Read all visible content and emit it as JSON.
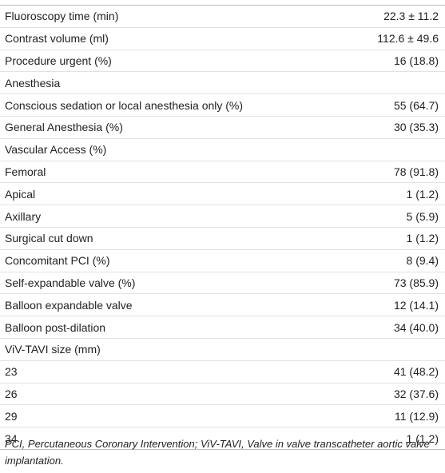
{
  "table": {
    "rows": [
      [
        "Fluoroscopy time (min)",
        "22.3 ± 11.2"
      ],
      [
        "Contrast volume (ml)",
        "112.6 ± 49.6"
      ],
      [
        "Procedure urgent (%)",
        "16 (18.8)"
      ],
      [
        "Anesthesia"
      ],
      [
        "Conscious sedation or local anesthesia only (%)",
        "55 (64.7)"
      ],
      [
        "General Anesthesia (%)",
        "30 (35.3)"
      ],
      [
        "Vascular Access (%)"
      ],
      [
        "Femoral",
        "78 (91.8)"
      ],
      [
        "Apical",
        "1 (1.2)"
      ],
      [
        "Axillary",
        "5 (5.9)"
      ],
      [
        "Surgical cut down",
        "1 (1.2)"
      ],
      [
        "Concomitant PCI (%)",
        "8 (9.4)"
      ],
      [
        "Self-expandable valve (%)",
        "73 (85.9)"
      ],
      [
        "Balloon expandable valve",
        "12 (14.1)"
      ],
      [
        "Balloon post-dilation",
        "34 (40.0)"
      ],
      [
        "ViV-TAVI size (mm)"
      ],
      [
        "23",
        "41 (48.2)"
      ],
      [
        "26",
        "32 (37.6)"
      ],
      [
        "29",
        "11 (12.9)"
      ],
      [
        "34",
        "1 (1.2)"
      ]
    ]
  },
  "footnote": "PCI, Percutaneous Coronary Intervention; ViV-TAVI, Valve in valve transcatheter aortic valve implantation."
}
